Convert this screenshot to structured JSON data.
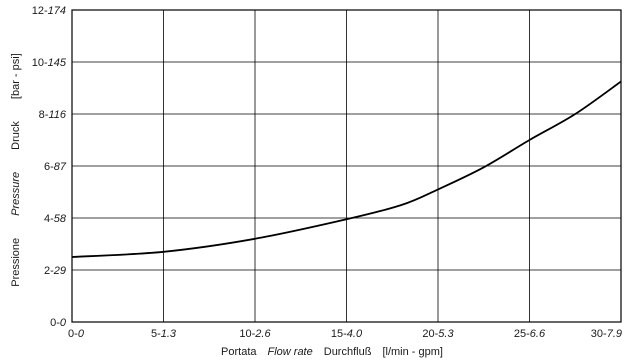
{
  "chart_data": {
    "type": "line",
    "title": "",
    "x_ticks": [
      {
        "main": "0-",
        "alt": "0"
      },
      {
        "main": "5-",
        "alt": "1.3"
      },
      {
        "main": "10-",
        "alt": "2.6"
      },
      {
        "main": "15-",
        "alt": "4.0"
      },
      {
        "main": "20-",
        "alt": "5.3"
      },
      {
        "main": "25-",
        "alt": "6.6"
      },
      {
        "main": "30-",
        "alt": "7.9"
      }
    ],
    "y_ticks": [
      {
        "main": "0-",
        "alt": "0"
      },
      {
        "main": "2-",
        "alt": "29"
      },
      {
        "main": "4-",
        "alt": "58"
      },
      {
        "main": "6-",
        "alt": "87"
      },
      {
        "main": "8-",
        "alt": "116"
      },
      {
        "main": "10-",
        "alt": "145"
      },
      {
        "main": "12-",
        "alt": "174"
      }
    ],
    "xlabel": {
      "parts": [
        {
          "text": "Portata",
          "italic": false
        },
        {
          "text": "Flow rate",
          "italic": true
        },
        {
          "text": "Durchfluß",
          "italic": false
        },
        {
          "text": "[l/min - gpm]",
          "italic": false
        }
      ]
    },
    "ylabel": {
      "parts": [
        {
          "text": "Pressione",
          "italic": false
        },
        {
          "text": "Pressure",
          "italic": true
        },
        {
          "text": "Druck",
          "italic": false
        },
        {
          "text": "[bar - psi]",
          "italic": false
        }
      ]
    },
    "xlim": [
      0,
      30
    ],
    "ylim": [
      0,
      12
    ],
    "grid": true,
    "series": [
      {
        "color": "#000000",
        "x": [
          0,
          5,
          10,
          15,
          18,
          20,
          22.5,
          25,
          27.5,
          30
        ],
        "y": [
          2.5,
          2.7,
          3.2,
          3.95,
          4.5,
          5.1,
          5.95,
          7.0,
          8.0,
          9.25
        ]
      }
    ]
  }
}
